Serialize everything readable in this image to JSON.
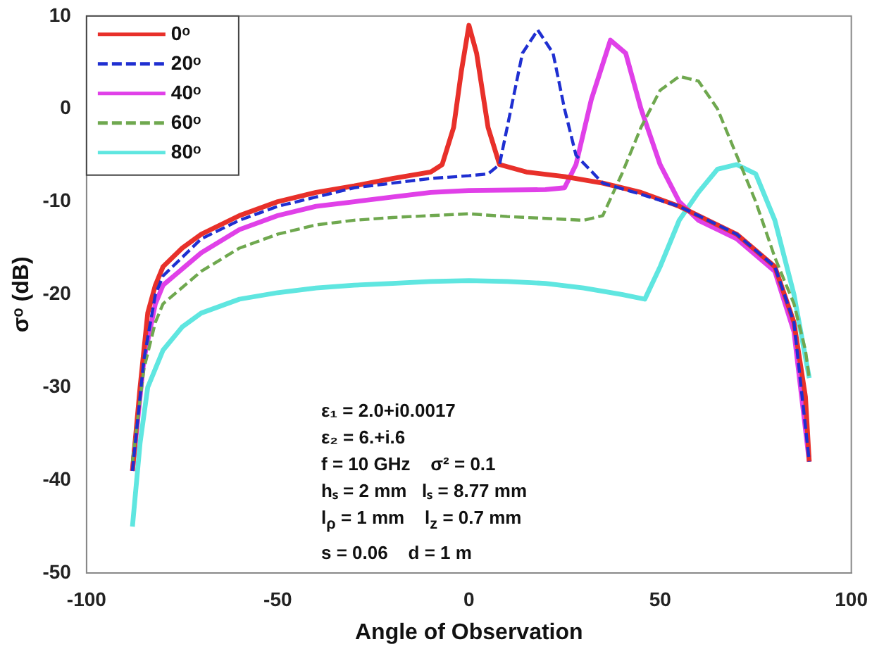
{
  "chart_data": {
    "type": "line",
    "xlabel": "Angle of Observation",
    "ylabel": "σᵒ (dB)",
    "xlim": [
      -100,
      100
    ],
    "xticks": [
      -100,
      -50,
      0,
      50,
      100
    ],
    "ylim": [
      -50,
      10
    ],
    "yticks": [
      -50,
      -40,
      -30,
      -20,
      -10,
      0,
      10
    ],
    "grid": false,
    "legend": "top left",
    "marker": "none",
    "series": [
      {
        "name": "0ᵒ",
        "color": "#e8302a",
        "line_style": "solid",
        "x": [
          -88,
          -86,
          -84,
          -82,
          -80,
          -75,
          -70,
          -60,
          -50,
          -40,
          -30,
          -20,
          -10,
          -7,
          -4,
          -2,
          0,
          2,
          5,
          8,
          15,
          25,
          35,
          45,
          55,
          60,
          70,
          80,
          85,
          88,
          89
        ],
        "values": [
          -39,
          -30,
          -22,
          -19,
          -17,
          -15,
          -13.5,
          -11.5,
          -10,
          -9,
          -8.3,
          -7.5,
          -6.8,
          -6,
          -2,
          4,
          9,
          6,
          -2,
          -6,
          -6.8,
          -7.3,
          -8,
          -9,
          -10.5,
          -11.5,
          -13.5,
          -17,
          -23,
          -31,
          -38
        ]
      },
      {
        "name": "20ᵒ",
        "color": "#1f2fd1",
        "line_style": "dashed",
        "x": [
          -88,
          -85,
          -82,
          -80,
          -70,
          -60,
          -50,
          -40,
          -30,
          -20,
          -10,
          0,
          5,
          8,
          11,
          14,
          18,
          22,
          25,
          28,
          35,
          45,
          55,
          60,
          70,
          80,
          85,
          89
        ],
        "values": [
          -39,
          -27,
          -20,
          -18,
          -14,
          -12,
          -10.5,
          -9.5,
          -8.5,
          -8,
          -7.5,
          -7.2,
          -7,
          -6,
          0,
          6,
          8.5,
          6,
          0,
          -5,
          -8,
          -9.2,
          -10.5,
          -11.5,
          -13.5,
          -17,
          -23,
          -38
        ]
      },
      {
        "name": "40ᵒ",
        "color": "#e040e8",
        "line_style": "solid",
        "x": [
          -88,
          -85,
          -82,
          -80,
          -70,
          -60,
          -50,
          -40,
          -30,
          -20,
          -10,
          0,
          20,
          25,
          28,
          32,
          37,
          41,
          45,
          50,
          55,
          60,
          70,
          80,
          85,
          89
        ],
        "values": [
          -39,
          -27,
          -21,
          -19,
          -15.5,
          -13,
          -11.5,
          -10.5,
          -10,
          -9.5,
          -9,
          -8.8,
          -8.7,
          -8.5,
          -6,
          1,
          7.4,
          6,
          0,
          -6,
          -10,
          -12,
          -14,
          -17.5,
          -24,
          -38
        ]
      },
      {
        "name": "60ᵒ",
        "color": "#6fa84f",
        "line_style": "dashed",
        "x": [
          -88,
          -85,
          -82,
          -80,
          -70,
          -60,
          -50,
          -40,
          -30,
          -20,
          -10,
          0,
          10,
          20,
          30,
          35,
          40,
          45,
          50,
          55,
          60,
          65,
          70,
          75,
          80,
          85,
          88,
          89
        ],
        "values": [
          -38,
          -28,
          -23,
          -21,
          -17.5,
          -15,
          -13.5,
          -12.5,
          -12,
          -11.7,
          -11.5,
          -11.3,
          -11.6,
          -11.8,
          -12,
          -11.5,
          -7,
          -2,
          2,
          3.5,
          3,
          0,
          -5,
          -10,
          -16,
          -21,
          -26,
          -29
        ]
      },
      {
        "name": "80ᵒ",
        "color": "#5fe6e0",
        "line_style": "solid",
        "x": [
          -88,
          -86,
          -84,
          -80,
          -75,
          -70,
          -60,
          -50,
          -40,
          -30,
          -20,
          -10,
          0,
          10,
          20,
          30,
          40,
          46,
          50,
          55,
          60,
          65,
          70,
          75,
          80,
          85,
          89
        ],
        "values": [
          -45,
          -36,
          -30,
          -26,
          -23.5,
          -22,
          -20.5,
          -19.8,
          -19.3,
          -19,
          -18.8,
          -18.6,
          -18.5,
          -18.6,
          -18.8,
          -19.3,
          -20,
          -20.5,
          -17,
          -12,
          -9,
          -6.5,
          -6,
          -7,
          -12,
          -20,
          -29
        ]
      }
    ],
    "annotations": [
      "ε₁ = 2.0+i0.0017",
      "ε₂ = 6.+i.6",
      "f = 10 GHz    σ² = 0.1",
      "hₛ = 2 mm   lₛ = 8.77 mm",
      "l$_{ρ}$ = 1 mm    l$_{z}$ = 0.7 mm",
      "s = 0.06    d = 1 m"
    ]
  }
}
